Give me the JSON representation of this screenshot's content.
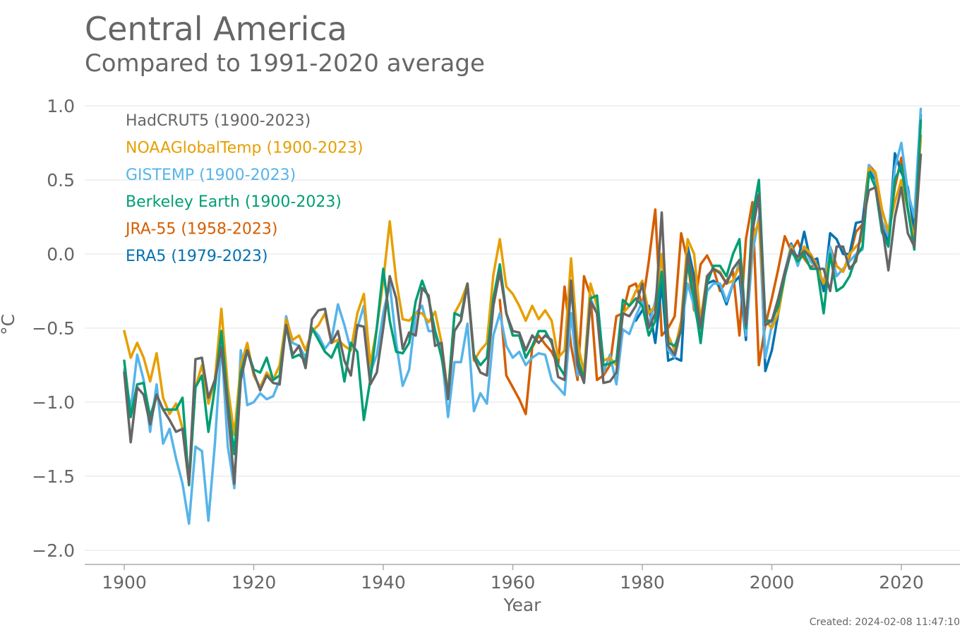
{
  "title": "Central America",
  "subtitle": "Compared to 1991-2020 average",
  "created": "Created: 2024-02-08 11:47:10",
  "chart_data": {
    "type": "line",
    "title": "Central America",
    "subtitle": "Compared to 1991-2020 average",
    "xlabel": "Year",
    "ylabel": "°C",
    "xlim": [
      1894,
      2031
    ],
    "ylim": [
      -2.1,
      1.1
    ],
    "xticks": [
      1900,
      1920,
      1940,
      1960,
      1980,
      2000,
      2020
    ],
    "xtick_labels": [
      "1900",
      "1920",
      "1940",
      "1960",
      "1980",
      "2000",
      "2020"
    ],
    "yticks": [
      1.0,
      0.5,
      0.0,
      -0.5,
      -1.0,
      -1.5,
      -2.0
    ],
    "ytick_labels": [
      "1.0",
      "0.5",
      "0.0",
      "−0.5",
      "−1.0",
      "−1.5",
      "−2.0"
    ],
    "grid": "horizontal",
    "legend_position": "top-left",
    "series": [
      {
        "name": "JRA-55 (1958-2023)",
        "color": "#D55E00",
        "start": 1958,
        "values": [
          -0.31,
          -0.82,
          -0.9,
          -0.98,
          -1.08,
          -0.63,
          -0.55,
          -0.61,
          -0.66,
          -0.75,
          -0.22,
          -0.62,
          -0.85,
          -0.15,
          -0.28,
          -0.85,
          -0.82,
          -0.75,
          -0.42,
          -0.4,
          -0.22,
          -0.2,
          -0.35,
          -0.05,
          0.3,
          -0.55,
          -0.5,
          -0.42,
          0.14,
          -0.05,
          -0.38,
          -0.07,
          -0.01,
          -0.1,
          -0.25,
          -0.18,
          -0.12,
          -0.55,
          0.1,
          0.35,
          -0.75,
          -0.48,
          -0.3,
          -0.1,
          0.12,
          0.02,
          0.09,
          -0.03,
          -0.09,
          -0.06,
          -0.25,
          0.05,
          -0.08,
          -0.12,
          -0.02,
          0.15,
          0.2,
          0.6,
          0.55,
          0.3,
          0.15,
          0.45,
          0.65,
          0.3,
          0.1,
          0.8
        ]
      },
      {
        "name": "ERA5 (1979-2023)",
        "color": "#0072B2",
        "start": 1979,
        "values": [
          -0.45,
          -0.38,
          -0.35,
          -0.6,
          -0.2,
          -0.72,
          -0.7,
          -0.72,
          0.05,
          -0.15,
          -0.6,
          -0.2,
          -0.18,
          -0.22,
          -0.34,
          -0.2,
          -0.15,
          -0.58,
          0.25,
          0.4,
          -0.79,
          -0.65,
          -0.4,
          -0.15,
          0.07,
          -0.05,
          0.15,
          -0.05,
          -0.03,
          -0.25,
          0.14,
          0.1,
          0.0,
          0.0,
          0.21,
          0.22,
          0.57,
          0.5,
          0.2,
          0.08,
          0.68,
          0.55,
          0.45,
          0.15,
          0.94
        ]
      },
      {
        "name": "GISTEMP (1900-2023)",
        "color": "#56B4E9",
        "start": 1900,
        "values": [
          -0.78,
          -1.05,
          -0.68,
          -0.85,
          -1.2,
          -0.88,
          -1.28,
          -1.18,
          -1.38,
          -1.55,
          -1.82,
          -1.3,
          -1.33,
          -1.8,
          -1.28,
          -0.6,
          -1.3,
          -1.58,
          -0.65,
          -1.02,
          -1.0,
          -0.94,
          -0.98,
          -0.96,
          -0.85,
          -0.42,
          -0.6,
          -0.62,
          -0.7,
          -0.5,
          -0.55,
          -0.64,
          -0.58,
          -0.34,
          -0.48,
          -0.65,
          -0.5,
          -0.35,
          -0.8,
          -0.68,
          -0.4,
          -0.2,
          -0.6,
          -0.89,
          -0.78,
          -0.4,
          -0.35,
          -0.52,
          -0.52,
          -0.66,
          -1.1,
          -0.73,
          -0.73,
          -0.47,
          -1.06,
          -0.94,
          -1.01,
          -0.55,
          -0.4,
          -0.62,
          -0.7,
          -0.66,
          -0.75,
          -0.7,
          -0.67,
          -0.68,
          -0.85,
          -0.9,
          -0.95,
          -0.4,
          -0.82,
          -0.8,
          -0.3,
          -0.4,
          -0.8,
          -0.68,
          -0.88,
          -0.51,
          -0.54,
          -0.42,
          -0.32,
          -0.48,
          -0.32,
          0.0,
          -0.65,
          -0.7,
          -0.5,
          -0.2,
          -0.35,
          -0.55,
          -0.25,
          -0.2,
          -0.2,
          -0.32,
          -0.2,
          -0.05,
          -0.55,
          0.0,
          0.25,
          -0.7,
          -0.48,
          -0.3,
          -0.12,
          0.06,
          -0.08,
          0.05,
          -0.05,
          -0.1,
          -0.2,
          0.05,
          -0.15,
          -0.1,
          -0.05,
          0.0,
          0.03,
          0.6,
          0.52,
          0.22,
          0.12,
          0.58,
          0.75,
          0.42,
          0.25,
          0.98
        ]
      },
      {
        "name": "NOAAGlobalTemp (1900-2023)",
        "color": "#E69F00",
        "start": 1900,
        "values": [
          -0.52,
          -0.7,
          -0.6,
          -0.7,
          -0.86,
          -0.67,
          -0.97,
          -1.08,
          -1.01,
          -1.18,
          -1.55,
          -0.9,
          -0.75,
          -1.01,
          -0.85,
          -0.37,
          -0.9,
          -1.22,
          -0.75,
          -0.6,
          -0.82,
          -0.9,
          -0.8,
          -0.85,
          -0.75,
          -0.44,
          -0.58,
          -0.55,
          -0.65,
          -0.52,
          -0.48,
          -0.4,
          -0.6,
          -0.58,
          -0.62,
          -0.65,
          -0.4,
          -0.27,
          -0.75,
          -0.5,
          -0.18,
          0.22,
          -0.18,
          -0.44,
          -0.45,
          -0.4,
          -0.4,
          -0.46,
          -0.39,
          -0.6,
          -0.95,
          -0.4,
          -0.32,
          -0.2,
          -0.72,
          -0.65,
          -0.6,
          -0.14,
          0.1,
          -0.22,
          -0.27,
          -0.35,
          -0.45,
          -0.35,
          -0.44,
          -0.38,
          -0.45,
          -0.7,
          -0.65,
          -0.03,
          -0.6,
          -0.8,
          -0.2,
          -0.35,
          -0.72,
          -0.7,
          -0.75,
          -0.4,
          -0.35,
          -0.25,
          -0.18,
          -0.4,
          -0.35,
          0.0,
          -0.55,
          -0.65,
          -0.45,
          0.1,
          0.0,
          -0.45,
          -0.15,
          -0.1,
          -0.12,
          -0.2,
          -0.18,
          -0.08,
          -0.45,
          0.1,
          0.22,
          -0.45,
          -0.5,
          -0.4,
          -0.15,
          0.05,
          -0.05,
          0.05,
          0.0,
          -0.08,
          -0.2,
          -0.02,
          -0.08,
          -0.12,
          0.0,
          0.05,
          0.1,
          0.58,
          0.55,
          0.3,
          0.15,
          0.35,
          0.5,
          0.3,
          0.1,
          0.8
        ]
      },
      {
        "name": "Berkeley Earth (1900-2023)",
        "color": "#009E73",
        "start": 1900,
        "values": [
          -0.72,
          -1.1,
          -0.88,
          -0.87,
          -1.1,
          -0.95,
          -1.05,
          -1.05,
          -1.05,
          -0.97,
          -1.56,
          -0.9,
          -0.82,
          -1.2,
          -0.9,
          -0.52,
          -1.0,
          -1.35,
          -0.8,
          -0.65,
          -0.78,
          -0.8,
          -0.7,
          -0.85,
          -0.82,
          -0.48,
          -0.7,
          -0.68,
          -0.72,
          -0.5,
          -0.58,
          -0.66,
          -0.7,
          -0.6,
          -0.86,
          -0.6,
          -0.66,
          -1.12,
          -0.85,
          -0.5,
          -0.1,
          -0.45,
          -0.66,
          -0.67,
          -0.6,
          -0.32,
          -0.18,
          -0.3,
          -0.52,
          -0.7,
          -0.95,
          -0.4,
          -0.42,
          -0.2,
          -0.68,
          -0.75,
          -0.7,
          -0.3,
          -0.07,
          -0.4,
          -0.55,
          -0.55,
          -0.7,
          -0.62,
          -0.52,
          -0.52,
          -0.6,
          -0.75,
          -0.82,
          -0.22,
          -0.7,
          -0.85,
          -0.3,
          -0.28,
          -0.75,
          -0.74,
          -0.72,
          -0.31,
          -0.35,
          -0.3,
          -0.35,
          -0.55,
          -0.45,
          -0.12,
          -0.6,
          -0.62,
          -0.52,
          -0.05,
          -0.3,
          -0.6,
          -0.2,
          -0.08,
          -0.08,
          -0.15,
          0.0,
          0.1,
          -0.5,
          0.25,
          0.5,
          -0.45,
          -0.45,
          -0.35,
          -0.15,
          0.02,
          -0.05,
          0.0,
          -0.1,
          -0.1,
          -0.4,
          0.0,
          -0.25,
          -0.22,
          -0.15,
          -0.02,
          0.05,
          0.55,
          0.45,
          0.15,
          0.05,
          0.5,
          0.6,
          0.3,
          0.03,
          0.9
        ]
      },
      {
        "name": "HadCRUT5 (1900-2023)",
        "color": "#666666",
        "start": 1900,
        "values": [
          -0.8,
          -1.27,
          -0.9,
          -0.95,
          -1.15,
          -0.95,
          -1.05,
          -1.12,
          -1.2,
          -1.18,
          -1.55,
          -0.71,
          -0.7,
          -0.97,
          -0.85,
          -0.63,
          -1.05,
          -1.55,
          -0.85,
          -0.65,
          -0.8,
          -0.92,
          -0.82,
          -0.87,
          -0.88,
          -0.48,
          -0.68,
          -0.62,
          -0.77,
          -0.44,
          -0.38,
          -0.37,
          -0.6,
          -0.52,
          -0.72,
          -0.82,
          -0.48,
          -0.49,
          -0.88,
          -0.8,
          -0.5,
          -0.15,
          -0.3,
          -0.64,
          -0.53,
          -0.55,
          -0.23,
          -0.28,
          -0.62,
          -0.6,
          -0.98,
          -0.52,
          -0.45,
          -0.2,
          -0.7,
          -0.8,
          -0.82,
          -0.35,
          -0.12,
          -0.4,
          -0.52,
          -0.53,
          -0.65,
          -0.55,
          -0.6,
          -0.55,
          -0.58,
          -0.83,
          -0.85,
          -0.18,
          -0.75,
          -0.87,
          -0.32,
          -0.4,
          -0.87,
          -0.86,
          -0.8,
          -0.4,
          -0.42,
          -0.35,
          -0.2,
          -0.5,
          -0.4,
          0.28,
          -0.62,
          -0.68,
          -0.5,
          0.0,
          -0.2,
          -0.5,
          -0.15,
          -0.1,
          -0.13,
          -0.2,
          -0.1,
          -0.04,
          -0.48,
          0.15,
          0.4,
          -0.48,
          -0.45,
          -0.3,
          -0.12,
          0.03,
          -0.02,
          0.02,
          -0.02,
          -0.1,
          -0.1,
          -0.25,
          0.05,
          0.05,
          -0.1,
          -0.05,
          0.2,
          0.43,
          0.45,
          0.2,
          -0.11,
          0.25,
          0.45,
          0.14,
          0.05,
          0.67
        ]
      }
    ],
    "legend": [
      {
        "label": "HadCRUT5 (1900-2023)",
        "color": "#666666"
      },
      {
        "label": "NOAAGlobalTemp (1900-2023)",
        "color": "#E69F00"
      },
      {
        "label": "GISTEMP (1900-2023)",
        "color": "#56B4E9"
      },
      {
        "label": "Berkeley Earth (1900-2023)",
        "color": "#009E73"
      },
      {
        "label": "JRA-55 (1958-2023)",
        "color": "#D55E00"
      },
      {
        "label": "ERA5 (1979-2023)",
        "color": "#0072B2"
      }
    ]
  }
}
